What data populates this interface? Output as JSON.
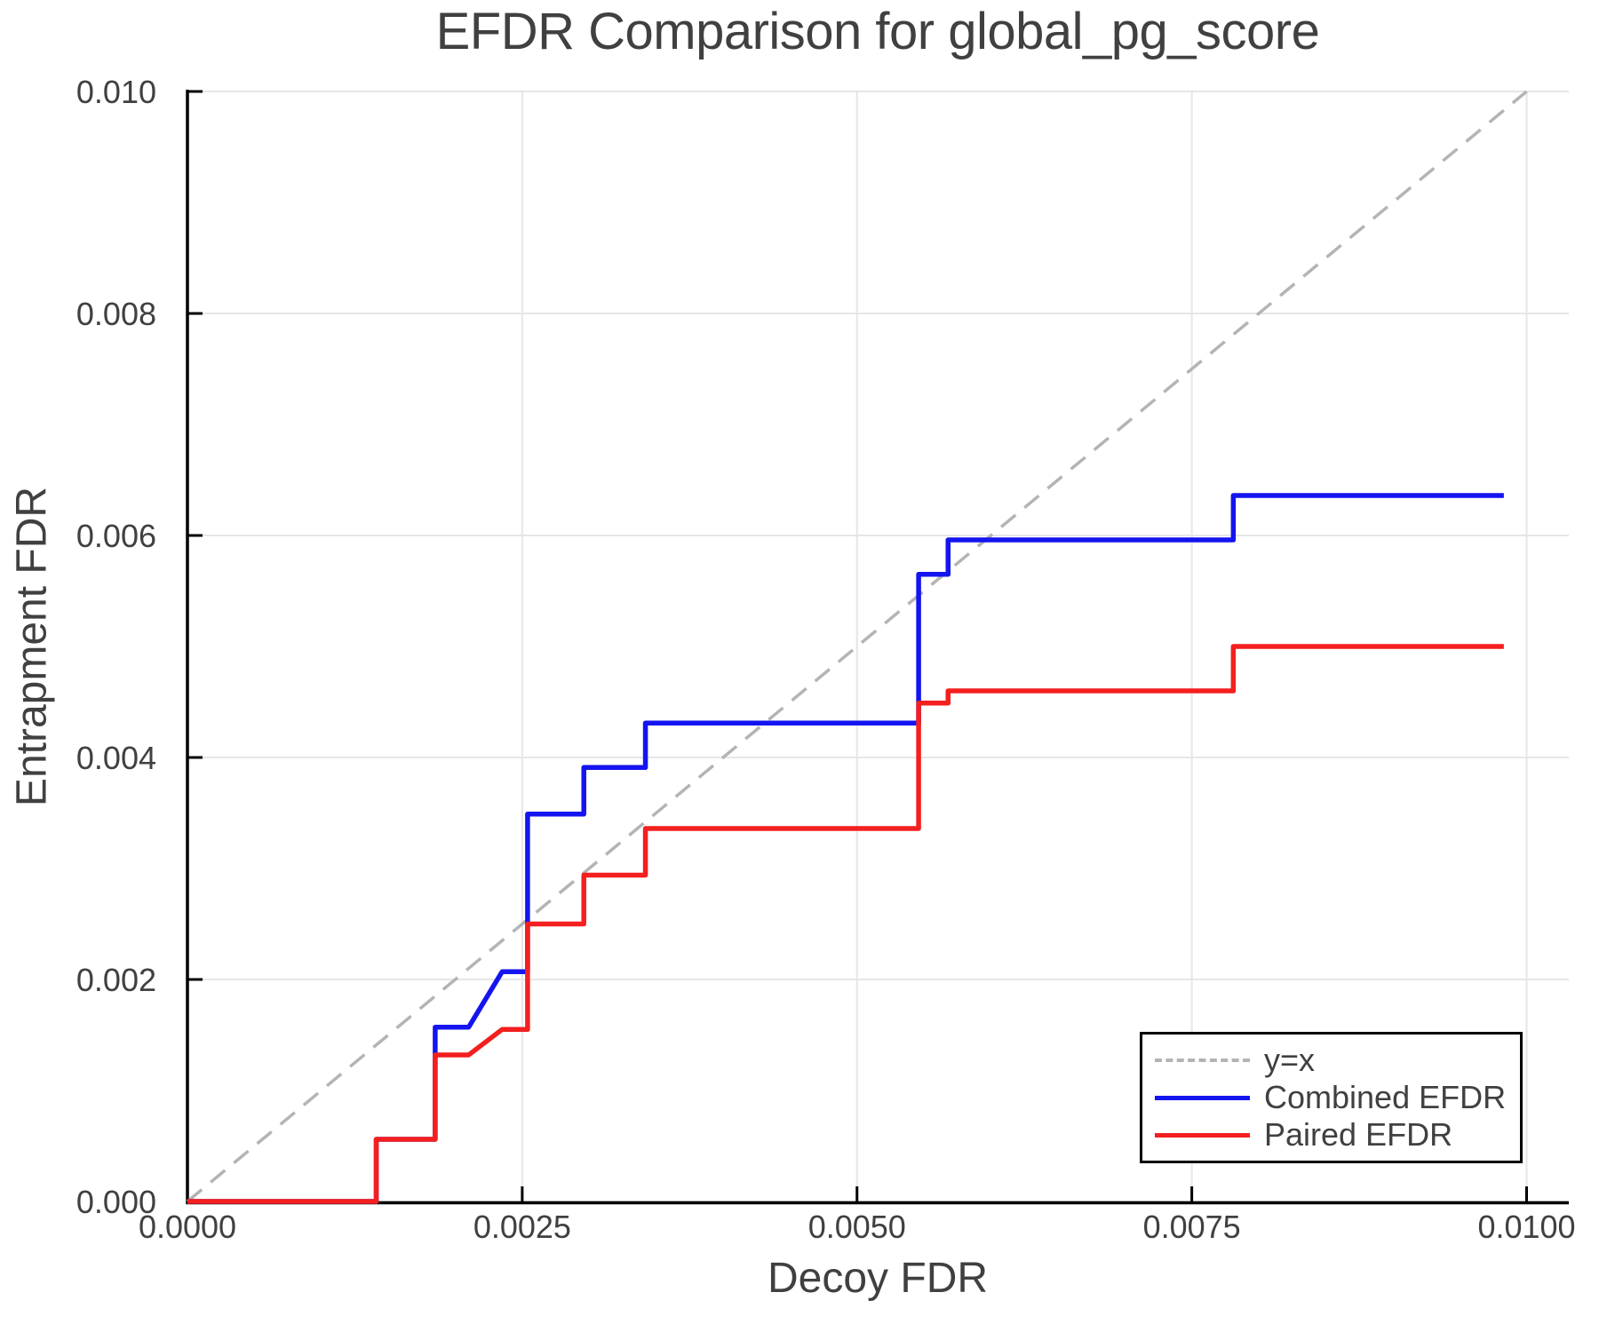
{
  "chart_data": {
    "type": "line",
    "title": "EFDR Comparison for global_pg_score",
    "xlabel": "Decoy FDR",
    "ylabel": "Entrapment FDR",
    "xlim": [
      0,
      0.0103
    ],
    "ylim": [
      0,
      0.01
    ],
    "grid": true,
    "legend_position": "lower right",
    "xticks": {
      "values": [
        0,
        0.0025,
        0.005,
        0.0075,
        0.01
      ],
      "labels": [
        "0.0000",
        "0.0025",
        "0.0050",
        "0.0075",
        "0.0100"
      ]
    },
    "yticks": {
      "values": [
        0,
        0.002,
        0.004,
        0.006,
        0.008,
        0.01
      ],
      "labels": [
        "0.000",
        "0.002",
        "0.004",
        "0.006",
        "0.008",
        "0.010"
      ]
    },
    "series": [
      {
        "name": "y=x",
        "style": "dashed",
        "color": "#b4b4b4",
        "points": [
          [
            0,
            0
          ],
          [
            0.01,
            0.01
          ]
        ]
      },
      {
        "name": "Combined EFDR",
        "style": "solid",
        "color": "#1414f0",
        "points": [
          [
            0,
            0
          ],
          [
            0.00141,
            0
          ],
          [
            0.00141,
            0.00056
          ],
          [
            0.00185,
            0.00056
          ],
          [
            0.00185,
            0.00157
          ],
          [
            0.0021,
            0.00157
          ],
          [
            0.00235,
            0.00207
          ],
          [
            0.00254,
            0.00207
          ],
          [
            0.00254,
            0.00349
          ],
          [
            0.00296,
            0.00349
          ],
          [
            0.00296,
            0.00391
          ],
          [
            0.00342,
            0.00391
          ],
          [
            0.00342,
            0.00431
          ],
          [
            0.00546,
            0.00431
          ],
          [
            0.00546,
            0.00565
          ],
          [
            0.00568,
            0.00565
          ],
          [
            0.00568,
            0.00596
          ],
          [
            0.00781,
            0.00596
          ],
          [
            0.00781,
            0.00636
          ],
          [
            0.00983,
            0.00636
          ]
        ]
      },
      {
        "name": "Paired EFDR",
        "style": "solid",
        "color": "#f41f1f",
        "points": [
          [
            0,
            0
          ],
          [
            0.00141,
            0
          ],
          [
            0.00141,
            0.00056
          ],
          [
            0.00185,
            0.00056
          ],
          [
            0.00185,
            0.00132
          ],
          [
            0.0021,
            0.00132
          ],
          [
            0.00235,
            0.00155
          ],
          [
            0.00254,
            0.00155
          ],
          [
            0.00254,
            0.0025
          ],
          [
            0.00296,
            0.0025
          ],
          [
            0.00296,
            0.00294
          ],
          [
            0.00342,
            0.00294
          ],
          [
            0.00342,
            0.00336
          ],
          [
            0.00546,
            0.00336
          ],
          [
            0.00546,
            0.00449
          ],
          [
            0.00568,
            0.00449
          ],
          [
            0.00568,
            0.0046
          ],
          [
            0.00781,
            0.0046
          ],
          [
            0.00781,
            0.005
          ],
          [
            0.00983,
            0.005
          ]
        ]
      }
    ],
    "colors": {
      "text": "#404040",
      "axis": "#000000",
      "gridline": "#e6e6e6",
      "background": "#ffffff"
    }
  }
}
